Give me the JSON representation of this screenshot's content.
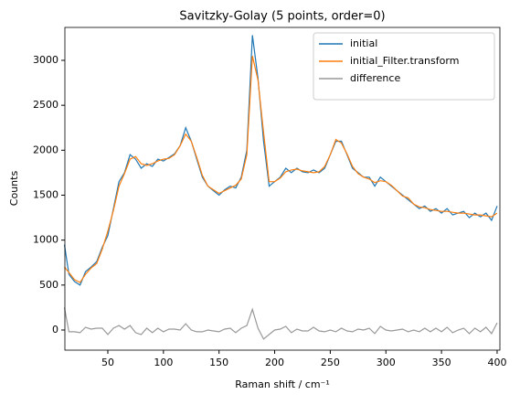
{
  "chart_data": {
    "type": "line",
    "title": "Savitzky-Golay (5 points, order=0)",
    "x_label": "Raman shift / cm⁻¹",
    "y_label": "Counts",
    "x": [
      11,
      15,
      20,
      25,
      30,
      35,
      40,
      45,
      50,
      55,
      60,
      65,
      70,
      75,
      80,
      85,
      90,
      95,
      100,
      105,
      110,
      115,
      120,
      125,
      130,
      135,
      140,
      145,
      150,
      155,
      160,
      165,
      170,
      175,
      180,
      185,
      190,
      195,
      200,
      205,
      210,
      215,
      220,
      225,
      230,
      235,
      240,
      245,
      250,
      255,
      260,
      265,
      270,
      275,
      280,
      285,
      290,
      295,
      300,
      305,
      310,
      315,
      320,
      325,
      330,
      335,
      340,
      345,
      350,
      355,
      360,
      365,
      370,
      375,
      380,
      385,
      390,
      395,
      400
    ],
    "series": [
      {
        "name": "initial",
        "color": "#1f77b4",
        "values": [
          950,
          620,
          540,
          500,
          650,
          700,
          760,
          920,
          1050,
          1350,
          1650,
          1750,
          1950,
          1900,
          1800,
          1850,
          1820,
          1900,
          1880,
          1920,
          1960,
          2050,
          2250,
          2100,
          1900,
          1700,
          1600,
          1550,
          1500,
          1560,
          1600,
          1580,
          1700,
          2000,
          3280,
          2800,
          2100,
          1600,
          1650,
          1700,
          1800,
          1750,
          1800,
          1760,
          1750,
          1780,
          1750,
          1800,
          1950,
          2100,
          2100,
          1950,
          1800,
          1750,
          1700,
          1700,
          1600,
          1700,
          1650,
          1600,
          1550,
          1500,
          1450,
          1400,
          1350,
          1380,
          1320,
          1350,
          1300,
          1350,
          1280,
          1300,
          1320,
          1250,
          1300,
          1260,
          1300,
          1220,
          1380
        ]
      },
      {
        "name": "initial_Filter.transform",
        "color": "#ff7f0e",
        "values": [
          700,
          640,
          560,
          530,
          620,
          690,
          740,
          900,
          1100,
          1330,
          1600,
          1740,
          1900,
          1930,
          1850,
          1830,
          1850,
          1880,
          1900,
          1910,
          1950,
          2050,
          2180,
          2100,
          1920,
          1720,
          1600,
          1560,
          1520,
          1550,
          1580,
          1610,
          1680,
          1950,
          3050,
          2780,
          2200,
          1650,
          1650,
          1690,
          1760,
          1780,
          1790,
          1770,
          1760,
          1750,
          1760,
          1820,
          1950,
          2120,
          2080,
          1960,
          1820,
          1740,
          1700,
          1680,
          1640,
          1660,
          1650,
          1610,
          1550,
          1490,
          1470,
          1400,
          1370,
          1360,
          1340,
          1330,
          1320,
          1320,
          1310,
          1300,
          1300,
          1290,
          1280,
          1280,
          1270,
          1260,
          1300
        ]
      },
      {
        "name": "difference",
        "color": "#999999",
        "values": [
          250,
          -20,
          -20,
          -30,
          30,
          10,
          20,
          20,
          -50,
          20,
          50,
          10,
          50,
          -30,
          -50,
          20,
          -30,
          20,
          -20,
          10,
          10,
          0,
          70,
          0,
          -20,
          -20,
          0,
          -10,
          -20,
          10,
          20,
          -30,
          20,
          50,
          230,
          20,
          -100,
          -50,
          0,
          10,
          40,
          -30,
          10,
          -10,
          -10,
          30,
          -10,
          -20,
          0,
          -20,
          20,
          -10,
          -20,
          10,
          0,
          20,
          -40,
          40,
          0,
          -10,
          0,
          10,
          -20,
          0,
          -20,
          20,
          -20,
          20,
          -20,
          30,
          -30,
          0,
          20,
          -40,
          20,
          -20,
          30,
          -40,
          80
        ]
      }
    ],
    "xlim": [
      11.4,
      402.5
    ],
    "ylim": [
      -224,
      3366
    ],
    "xticks": [
      50,
      100,
      150,
      200,
      250,
      300,
      350,
      400
    ],
    "yticks": [
      0,
      500,
      1000,
      1500,
      2000,
      2500,
      3000
    ],
    "legend": "upper right"
  }
}
